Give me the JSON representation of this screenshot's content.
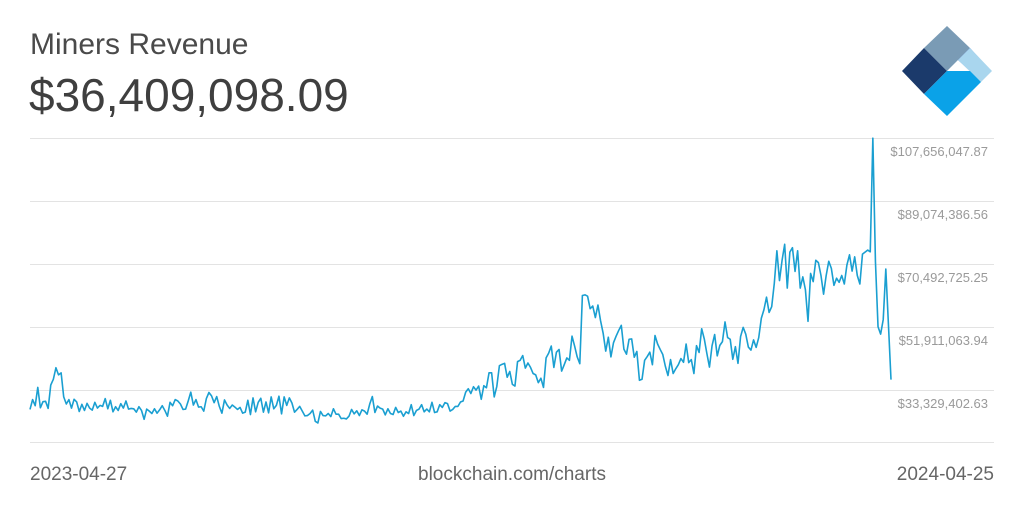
{
  "header": {
    "title": "Miners Revenue",
    "current_value": "$36,409,098.09"
  },
  "footer": {
    "start_date": "2023-04-27",
    "source": "blockchain.com/charts",
    "end_date": "2024-04-25"
  },
  "logo": {
    "icon": "blockchain-logo-icon",
    "colors": [
      "#1b3a6b",
      "#7a9bb5",
      "#3f5fc9",
      "#a9d6ee",
      "#0aa2e8"
    ]
  },
  "colors": {
    "line": "#1a9fd1",
    "grid": "#e3e3e3",
    "tick_text": "#9a9a9a"
  },
  "chart_data": {
    "type": "line",
    "title": "Miners Revenue",
    "xlabel": "",
    "ylabel": "",
    "x_start": "2023-04-27",
    "x_end": "2024-04-25",
    "ylim": [
      18000000,
      107656047.87
    ],
    "yticks": [
      33329402.63,
      51911063.94,
      70492725.25,
      89074386.56,
      107656047.87
    ],
    "ytick_labels": [
      "$33,329,402.63",
      "$51,911,063.94",
      "$70,492,725.25",
      "$89,074,386.56",
      "$107,656,047.87"
    ],
    "grid": true,
    "series": [
      {
        "values": [
          27600000,
          30500000,
          28700000,
          34100000,
          28100000,
          29900000,
          30000000,
          27900000,
          34800000,
          36500000,
          39900000,
          37800000,
          38400000,
          31300000,
          29200000,
          30500000,
          28000000,
          30600000,
          29800000,
          27000000,
          29100000,
          27300000,
          29400000,
          28000000,
          27400000,
          29700000,
          28000000,
          28800000,
          28500000,
          30800000,
          27800000,
          30300000,
          26900000,
          28400000,
          27300000,
          29300000,
          28000000,
          30100000,
          27700000,
          27900000,
          27800000,
          26800000,
          28400000,
          27300000,
          24700000,
          27700000,
          27100000,
          26400000,
          27800000,
          26500000,
          27500000,
          28700000,
          27300000,
          25600000,
          29700000,
          28700000,
          30500000,
          30100000,
          29200000,
          27600000,
          27700000,
          30100000,
          32700000,
          28900000,
          30500000,
          28300000,
          28400000,
          27100000,
          30800000,
          32600000,
          31600000,
          29600000,
          31400000,
          28500000,
          26500000,
          30400000,
          28900000,
          27900000,
          28900000,
          28300000,
          27600000,
          28200000,
          26500000,
          26800000,
          30300000,
          26100000,
          31000000,
          26900000,
          29700000,
          30900000,
          26800000,
          29800000,
          26600000,
          31300000,
          27800000,
          28800000,
          31500000,
          26300000,
          31300000,
          28800000,
          31000000,
          29500000,
          26800000,
          27600000,
          28500000,
          27100000,
          25700000,
          25800000,
          26400000,
          27400000,
          24100000,
          23600000,
          27000000,
          25800000,
          25700000,
          26400000,
          25500000,
          27800000,
          26200000,
          26200000,
          24900000,
          25000000,
          24800000,
          25600000,
          27600000,
          26300000,
          27200000,
          25800000,
          27500000,
          27100000,
          26200000,
          29200000,
          31400000,
          26700000,
          28600000,
          28000000,
          27700000,
          26000000,
          27800000,
          26400000,
          26100000,
          28200000,
          26700000,
          27100000,
          25600000,
          26900000,
          26400000,
          29000000,
          25800000,
          27300000,
          27700000,
          29000000,
          26900000,
          27700000,
          26900000,
          29700000,
          26700000,
          26900000,
          29000000,
          28200000,
          29600000,
          29300000,
          27100000,
          27600000,
          28500000,
          28500000,
          29800000,
          30100000,
          32700000,
          33700000,
          32300000,
          34300000,
          33300000,
          34500000,
          30600000,
          34600000,
          34000000,
          38400000,
          38400000,
          31300000,
          34400000,
          40500000,
          40900000,
          41200000,
          37100000,
          38800000,
          35000000,
          34500000,
          41700000,
          42100000,
          43500000,
          39800000,
          41300000,
          40000000,
          38200000,
          37800000,
          35500000,
          36800000,
          34100000,
          42800000,
          44200000,
          46300000,
          40000000,
          44500000,
          45300000,
          38900000,
          40800000,
          42800000,
          42100000,
          49200000,
          46300000,
          43100000,
          41100000,
          61200000,
          61400000,
          61000000,
          57300000,
          58100000,
          54700000,
          58400000,
          53800000,
          50100000,
          44800000,
          48900000,
          43100000,
          47300000,
          49200000,
          50900000,
          52400000,
          45400000,
          43900000,
          48300000,
          48400000,
          43000000,
          44700000,
          36200000,
          36500000,
          42100000,
          43200000,
          44500000,
          40800000,
          49400000,
          46900000,
          45300000,
          43800000,
          40300000,
          37600000,
          42300000,
          38200000,
          39600000,
          40800000,
          42600000,
          41500000,
          46900000,
          41400000,
          42300000,
          38200000,
          46400000,
          44400000,
          51400000,
          48400000,
          44100000,
          40100000,
          46400000,
          49700000,
          43400000,
          46500000,
          47600000,
          53400000,
          48800000,
          48300000,
          42400000,
          46100000,
          41200000,
          49100000,
          51800000,
          49800000,
          46000000,
          45100000,
          48100000,
          45900000,
          48800000,
          54500000,
          57000000,
          60700000,
          56200000,
          57900000,
          64800000,
          74400000,
          65600000,
          71600000,
          76300000,
          63400000,
          74000000,
          75300000,
          68300000,
          74400000,
          63400000,
          66700000,
          62900000,
          53600000,
          67700000,
          65300000,
          71600000,
          70900000,
          67100000,
          61600000,
          67100000,
          71300000,
          69200000,
          64200000,
          66300000,
          65100000,
          67100000,
          64600000,
          70200000,
          73200000,
          68400000,
          72600000,
          67100000,
          64600000,
          73400000,
          74000000,
          74600000,
          74100000,
          107600000,
          71200000,
          52000000,
          49800000,
          54100000,
          69000000,
          52800000,
          36400000
        ]
      }
    ]
  }
}
